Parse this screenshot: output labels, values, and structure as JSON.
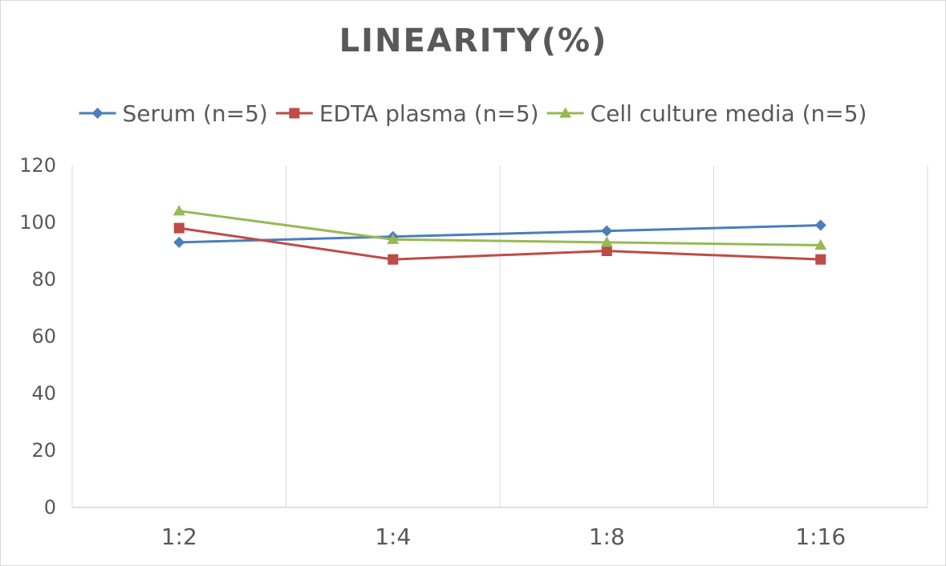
{
  "chart_data": {
    "type": "line",
    "title": "LINEARITY(%)",
    "xlabel": "",
    "ylabel": "",
    "categories": [
      "1:2",
      "1:4",
      "1:8",
      "1:16"
    ],
    "ylim": [
      0,
      120
    ],
    "yticks": [
      0,
      20,
      40,
      60,
      80,
      100,
      120
    ],
    "grid": "vertical",
    "legend_position": "top",
    "series": [
      {
        "name": "Serum (n=5)",
        "values": [
          93,
          95,
          97,
          99
        ],
        "color": "#4a7ebb",
        "marker": "diamond"
      },
      {
        "name": "EDTA plasma (n=5)",
        "values": [
          98,
          87,
          90,
          87
        ],
        "color": "#be4b48",
        "marker": "square"
      },
      {
        "name": "Cell culture media (n=5)",
        "values": [
          104,
          94,
          93,
          92
        ],
        "color": "#98b954",
        "marker": "triangle"
      }
    ]
  }
}
